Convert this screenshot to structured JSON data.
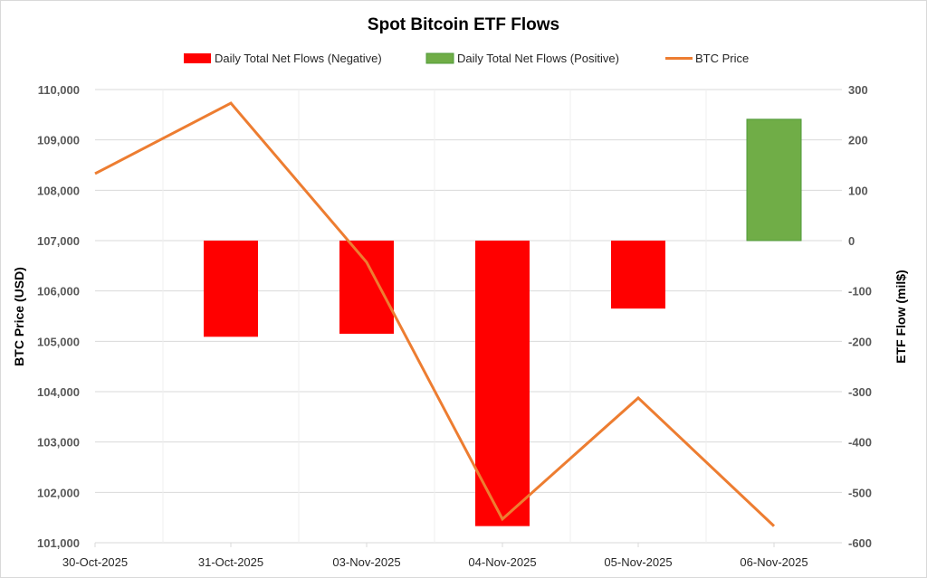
{
  "chart_data": {
    "type": "bar+line",
    "title": "Spot Bitcoin ETF Flows",
    "categories": [
      "30-Oct-2025",
      "31-Oct-2025",
      "03-Nov-2025",
      "04-Nov-2025",
      "05-Nov-2025",
      "06-Nov-2025"
    ],
    "series": [
      {
        "name": "Daily Total Net Flows (Negative)",
        "type": "bar",
        "axis": "right",
        "color": "#FF0000",
        "values": [
          0,
          -191,
          -185,
          -567,
          -135,
          0
        ]
      },
      {
        "name": "Daily Total Net Flows (Positive)",
        "type": "bar",
        "axis": "right",
        "color": "#70AD47",
        "values": [
          0,
          0,
          0,
          0,
          0,
          241
        ]
      },
      {
        "name": "BTC Price",
        "type": "line",
        "axis": "left",
        "color": "#ED7D31",
        "values": [
          108330,
          109730,
          106570,
          101470,
          103875,
          101330
        ]
      }
    ],
    "ylabel": "BTC Price (USD)",
    "y2label": "ETF Flow (mil$)",
    "ylim": [
      101000,
      110000
    ],
    "y2lim": [
      -600,
      300
    ],
    "yticks": [
      "101,000",
      "102,000",
      "103,000",
      "104,000",
      "105,000",
      "106,000",
      "107,000",
      "108,000",
      "109,000",
      "110,000"
    ],
    "y2ticks": [
      "-600",
      "-500",
      "-400",
      "-300",
      "-200",
      "-100",
      "0",
      "100",
      "200",
      "300"
    ],
    "grid": true,
    "legend": "top"
  }
}
